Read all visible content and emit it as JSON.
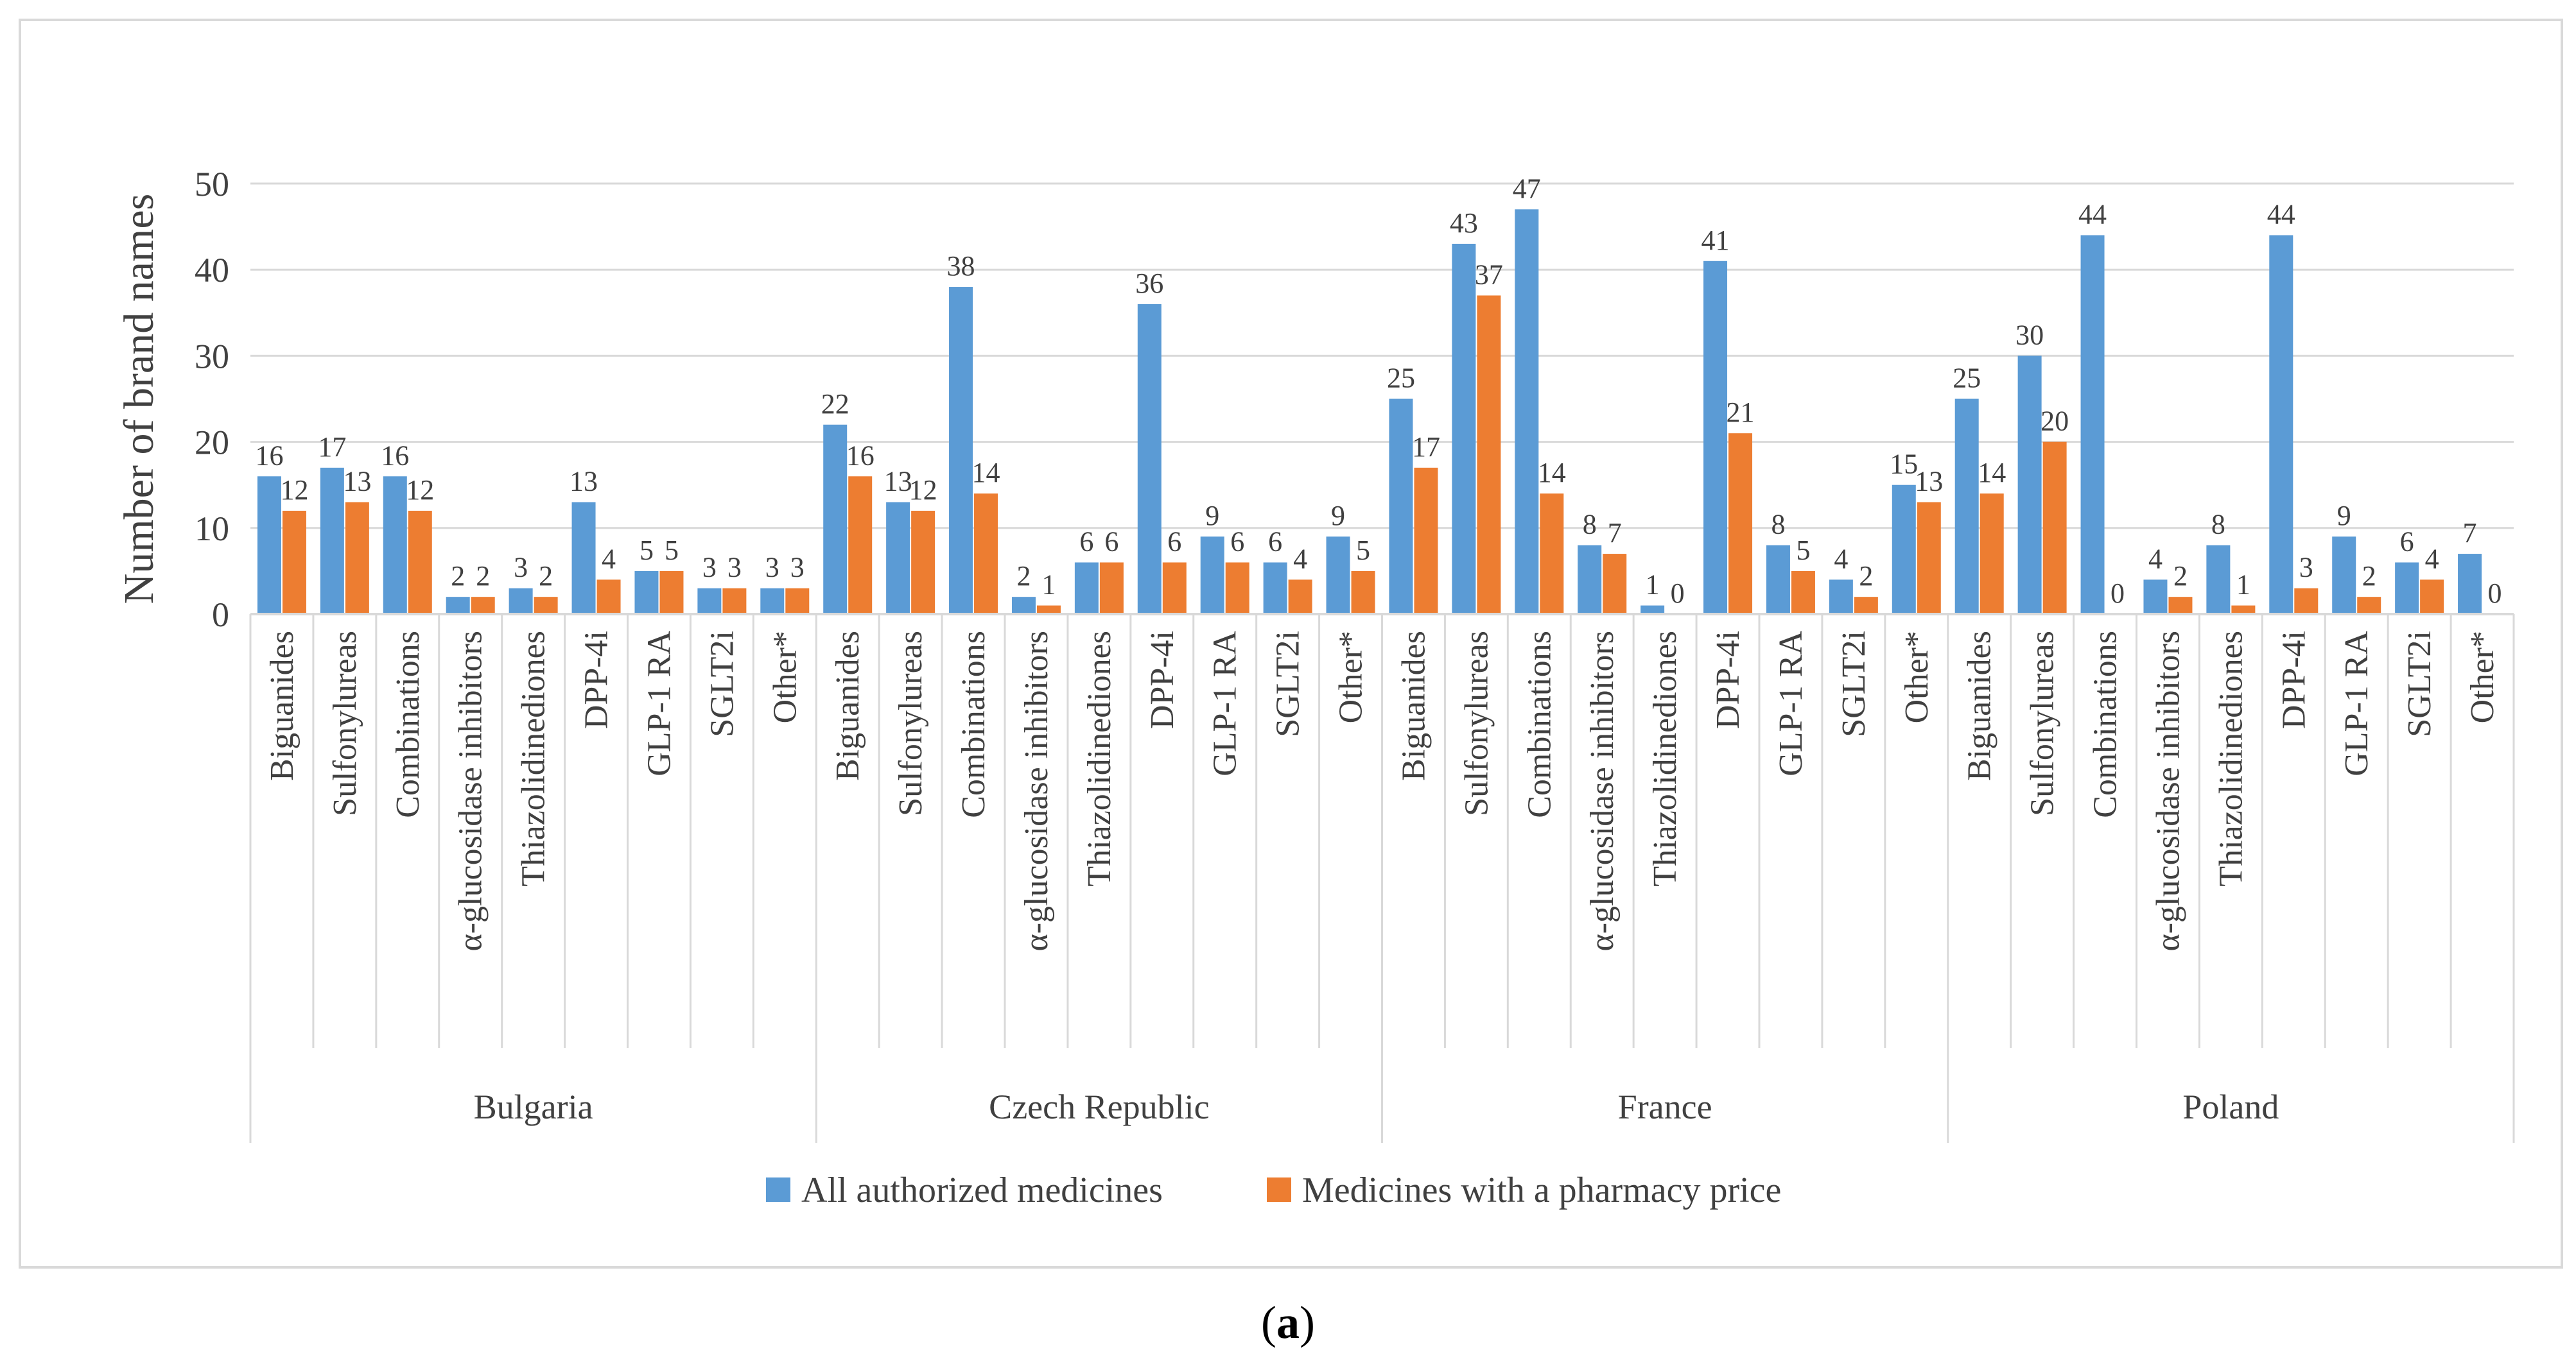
{
  "chart_data": {
    "type": "bar",
    "title": "",
    "xlabel": "",
    "ylabel": "Number of brand names",
    "ylim": [
      0,
      50
    ],
    "yticks": [
      0,
      10,
      20,
      30,
      40,
      50
    ],
    "grid": true,
    "legend_position": "bottom",
    "colors": {
      "all": "#5b9bd5",
      "pharmacy": "#ed7d31",
      "grid": "#d9d9d9",
      "text": "#404040"
    },
    "groups": [
      {
        "name": "Bulgaria",
        "categories": [
          "Biguanides",
          "Sulfonylureas",
          "Combinations",
          "α-glucosidase inhibitors",
          "Thiazolidinediones",
          "DPP-4i",
          "GLP-1 RA",
          "SGLT2i",
          "Other*"
        ],
        "series": [
          {
            "name": "All authorized medicines",
            "values": [
              16,
              17,
              16,
              2,
              3,
              13,
              5,
              3,
              3
            ]
          },
          {
            "name": "Medicines with a pharmacy price",
            "values": [
              12,
              13,
              12,
              2,
              2,
              4,
              5,
              3,
              3
            ]
          }
        ]
      },
      {
        "name": "Czech Republic",
        "categories": [
          "Biguanides",
          "Sulfonylureas",
          "Combinations",
          "α-glucosidase inhibitors",
          "Thiazolidinediones",
          "DPP-4i",
          "GLP-1 RA",
          "SGLT2i",
          "Other*"
        ],
        "series": [
          {
            "name": "All authorized medicines",
            "values": [
              22,
              13,
              38,
              2,
              6,
              36,
              9,
              6,
              9
            ]
          },
          {
            "name": "Medicines with a pharmacy price",
            "values": [
              16,
              12,
              14,
              1,
              6,
              6,
              6,
              4,
              5
            ]
          }
        ]
      },
      {
        "name": "France",
        "categories": [
          "Biguanides",
          "Sulfonylureas",
          "Combinations",
          "α-glucosidase inhibitors",
          "Thiazolidinediones",
          "DPP-4i",
          "GLP-1 RA",
          "SGLT2i",
          "Other*"
        ],
        "series": [
          {
            "name": "All authorized medicines",
            "values": [
              25,
              43,
              47,
              8,
              1,
              41,
              8,
              4,
              15
            ]
          },
          {
            "name": "Medicines with a pharmacy price",
            "values": [
              17,
              37,
              14,
              7,
              0,
              21,
              5,
              2,
              13
            ]
          }
        ]
      },
      {
        "name": "Poland",
        "categories": [
          "Biguanides",
          "Sulfonylureas",
          "Combinations",
          "α-glucosidase inhibitors",
          "Thiazolidinediones",
          "DPP-4i",
          "GLP-1 RA",
          "SGLT2i",
          "Other*"
        ],
        "series": [
          {
            "name": "All authorized medicines",
            "values": [
              25,
              30,
              44,
              4,
              8,
              44,
              9,
              6,
              7
            ]
          },
          {
            "name": "Medicines with a pharmacy price",
            "values": [
              14,
              20,
              0,
              2,
              1,
              3,
              2,
              4,
              0
            ]
          }
        ]
      }
    ],
    "legend": [
      "All authorized medicines",
      "Medicines with a pharmacy price"
    ]
  },
  "caption": {
    "open": "(",
    "letter": "a",
    "close": ")"
  }
}
